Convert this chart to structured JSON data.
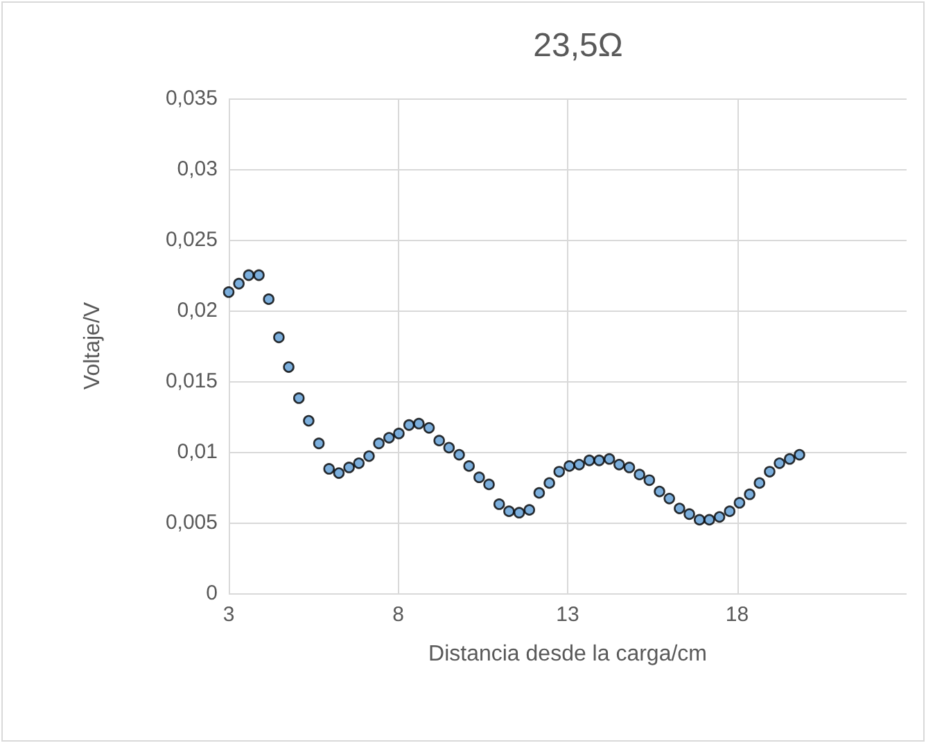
{
  "chart_data": {
    "type": "scatter",
    "title": "23,5Ω",
    "xlabel": "Distancia desde la carga/cm",
    "ylabel": "Voltaje/V",
    "x": [
      3.0,
      3.3,
      3.59,
      3.89,
      4.18,
      4.48,
      4.77,
      5.07,
      5.36,
      5.66,
      5.96,
      6.25,
      6.55,
      6.84,
      7.14,
      7.43,
      7.73,
      8.02,
      8.32,
      8.61,
      8.91,
      9.21,
      9.5,
      9.8,
      10.09,
      10.39,
      10.68,
      10.98,
      11.27,
      11.57,
      11.87,
      12.16,
      12.46,
      12.75,
      13.05,
      13.34,
      13.64,
      13.93,
      14.23,
      14.52,
      14.82,
      15.12,
      15.41,
      15.71,
      16.0,
      16.3,
      16.59,
      16.89,
      17.18,
      17.48,
      17.78,
      18.07,
      18.37,
      18.66,
      18.96,
      19.25,
      19.55,
      19.84
    ],
    "series": [
      {
        "color": "#5b9bd5",
        "values": [
          0.0213,
          0.0219,
          0.0225,
          0.0225,
          0.0208,
          0.0181,
          0.016,
          0.0138,
          0.0122,
          0.0106,
          0.0088,
          0.0085,
          0.0089,
          0.0092,
          0.0097,
          0.0106,
          0.011,
          0.0113,
          0.0119,
          0.012,
          0.0117,
          0.0108,
          0.0103,
          0.0098,
          0.009,
          0.0082,
          0.0077,
          0.0063,
          0.0058,
          0.0057,
          0.0059,
          0.0071,
          0.0078,
          0.0086,
          0.009,
          0.0091,
          0.0094,
          0.0094,
          0.0095,
          0.0091,
          0.0089,
          0.0084,
          0.008,
          0.0072,
          0.0067,
          0.006,
          0.0056,
          0.0052,
          0.0052,
          0.0054,
          0.0058,
          0.0064,
          0.007,
          0.0078,
          0.0086,
          0.0092,
          0.0095,
          0.0098
        ]
      }
    ],
    "xlim": [
      3,
      23
    ],
    "xticks": [
      3,
      8,
      13,
      18
    ],
    "ylim": [
      0,
      0.035
    ],
    "yticks": [
      {
        "value": 0,
        "label": "0"
      },
      {
        "value": 0.005,
        "label": "0,005"
      },
      {
        "value": 0.01,
        "label": "0,01"
      },
      {
        "value": 0.015,
        "label": "0,015"
      },
      {
        "value": 0.02,
        "label": "0,02"
      },
      {
        "value": 0.025,
        "label": "0,025"
      },
      {
        "value": 0.03,
        "label": "0,03"
      },
      {
        "value": 0.035,
        "label": "0,035"
      }
    ],
    "grid": true,
    "marker": "circle"
  }
}
